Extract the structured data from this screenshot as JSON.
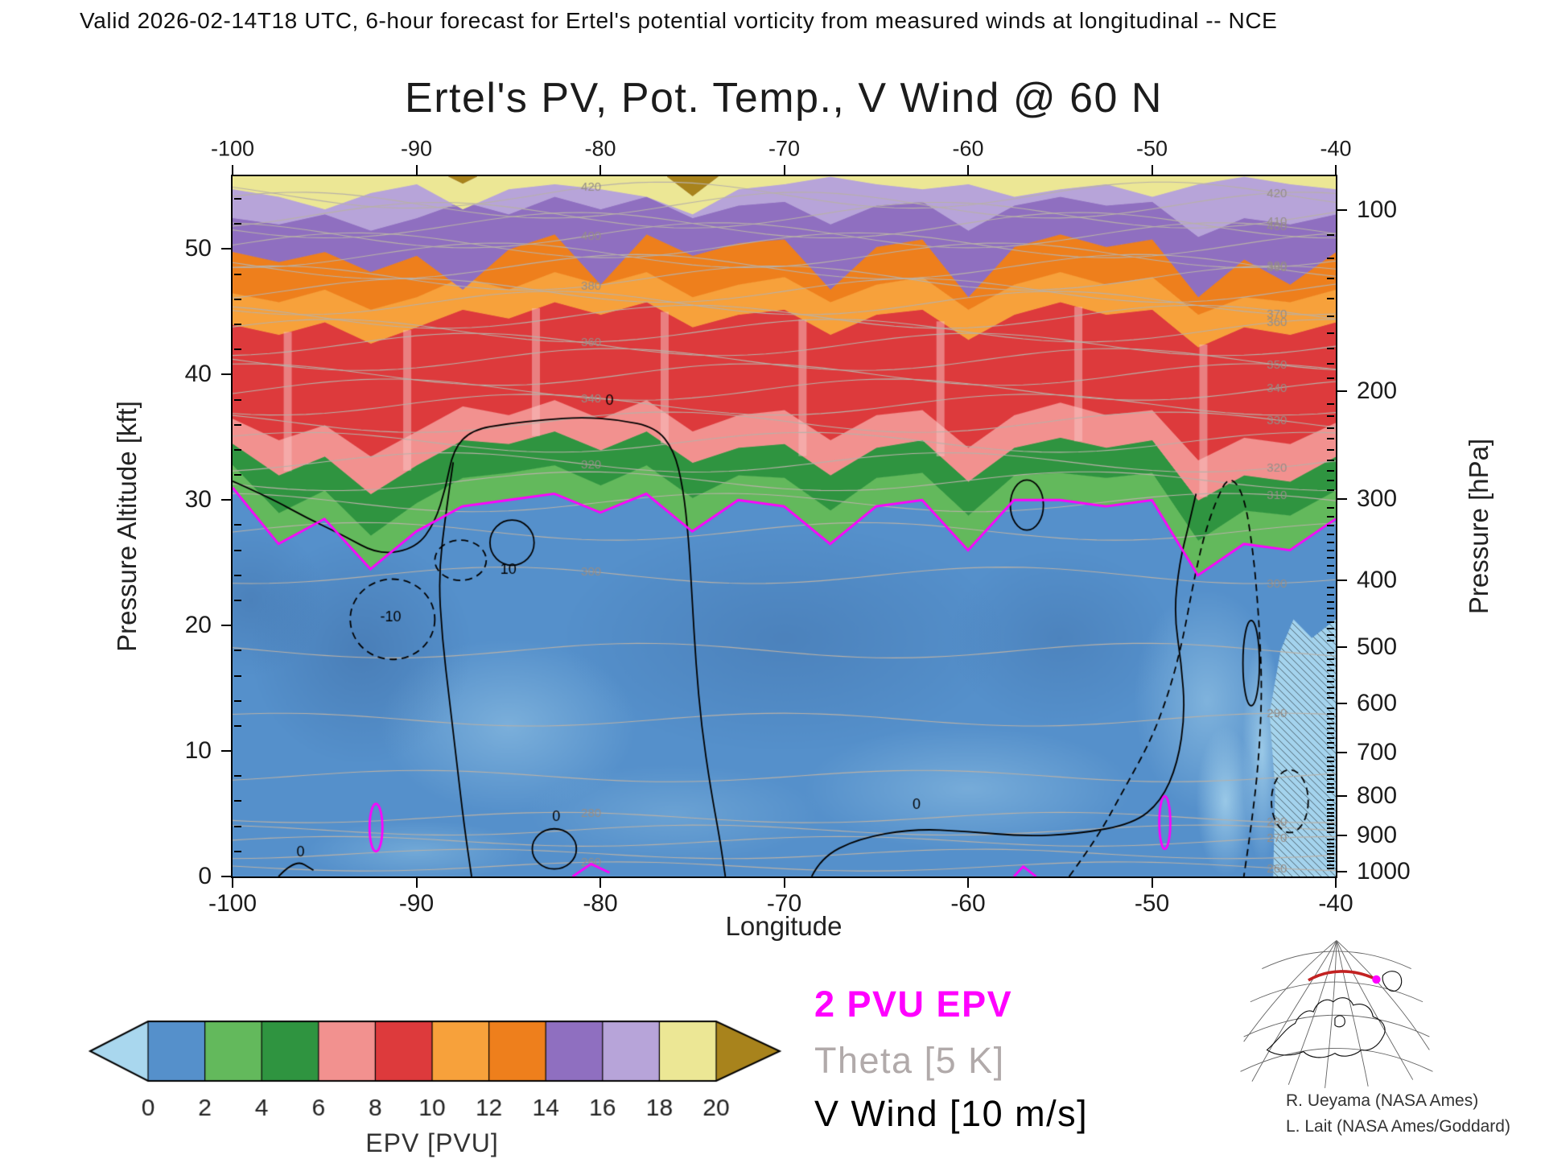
{
  "header": {
    "validity_line": "Valid 2026-02-14T18 UTC, 6-hour forecast for Ertel's potential vorticity from measured winds at longitudinal -- NCE"
  },
  "title": "Ertel's PV, Pot. Temp., V Wind @ 60 N",
  "axes": {
    "x": {
      "label": "Longitude",
      "ticks": [
        -100,
        -90,
        -80,
        -70,
        -60,
        -50,
        -40
      ]
    },
    "y_left": {
      "label": "Pressure Altitude [kft]",
      "ticks": [
        0,
        10,
        20,
        30,
        40,
        50
      ],
      "minor_step": 2
    },
    "y_right": {
      "label": "Pressure [hPa]",
      "ticks": [
        100,
        200,
        300,
        400,
        500,
        600,
        700,
        800,
        900,
        1000
      ]
    }
  },
  "colorbar": {
    "label": "EPV [PVU]",
    "ticks": [
      0,
      2,
      4,
      6,
      8,
      10,
      12,
      14,
      16,
      18,
      20
    ]
  },
  "legend": [
    {
      "text": "2 PVU EPV",
      "color": "#ff00ff"
    },
    {
      "text": "Theta [5 K]",
      "color": "#b1aaaa"
    },
    {
      "text": "V Wind [10 m/s]",
      "color": "#000000"
    }
  ],
  "credits": [
    "R. Ueyama (NASA Ames)",
    "L. Lait (NASA Ames/Goddard)"
  ],
  "chart_data": {
    "type": "heatmap",
    "title": "Ertel's PV, Pot. Temp., V Wind @ 60 N",
    "xlabel": "Longitude",
    "ylabel_left": "Pressure Altitude [kft]",
    "ylabel_right": "Pressure [hPa]",
    "x_range": [
      -100,
      -40
    ],
    "y_top_kft": 55.8,
    "lons": [
      -100,
      -97.5,
      -95,
      -92.5,
      -90,
      -87.5,
      -85,
      -82.5,
      -80,
      -77.5,
      -75,
      -72.5,
      -70,
      -67.5,
      -65,
      -62.5,
      -60,
      -57.5,
      -55,
      -52.5,
      -50,
      -47.5,
      -45,
      -42.5,
      -40
    ],
    "epv_levels": [
      0,
      2,
      4,
      6,
      8,
      10,
      12,
      14,
      16,
      18,
      20
    ],
    "epv_colors": [
      "#a9d7ee",
      "#5590cb",
      "#63b95c",
      "#2f9440",
      "#f2918f",
      "#dd3a3c",
      "#f7a13b",
      "#ee7f1c",
      "#8f6fc0",
      "#b7a4d9",
      "#ece795",
      "#a8831c"
    ],
    "boundaries": {
      "2": [
        31,
        26.5,
        28.5,
        24.5,
        27.5,
        29.5,
        30,
        30.5,
        29,
        30.5,
        27.5,
        30,
        29.5,
        26.5,
        29.5,
        30,
        26,
        30,
        30,
        29.5,
        30,
        24,
        26.5,
        26,
        28.5
      ],
      "4": [
        32.8,
        29,
        30.8,
        27.2,
        29.8,
        31.8,
        32.2,
        32.8,
        31.2,
        32.8,
        30.2,
        32,
        31.8,
        29.2,
        31.8,
        32.2,
        28.8,
        32,
        32.2,
        31.8,
        32.2,
        26.8,
        29.2,
        28.8,
        30.8
      ],
      "6": [
        34.5,
        32,
        33.5,
        30.5,
        32.8,
        34.8,
        34.5,
        35.5,
        34,
        35.5,
        33,
        34.2,
        34.5,
        32,
        34.2,
        34.8,
        31.5,
        34.2,
        35,
        34.2,
        34.8,
        30,
        32,
        31.5,
        33.5
      ],
      "8": [
        36.5,
        34.8,
        36,
        33.5,
        35.5,
        37.5,
        36.8,
        38,
        36.5,
        38,
        35.5,
        36.8,
        37.2,
        34.8,
        36.8,
        37.2,
        34.2,
        36.8,
        37.8,
        36.8,
        37.2,
        33.2,
        35,
        34.5,
        36.2
      ],
      "10": [
        44,
        43.2,
        44.2,
        42.5,
        43.8,
        45.2,
        44.5,
        45.8,
        44.8,
        45.8,
        43.8,
        44.8,
        45.2,
        43.2,
        44.8,
        45.2,
        42.8,
        44.8,
        45.8,
        44.8,
        45.2,
        42.2,
        43.8,
        43.2,
        44.2
      ],
      "12": [
        46.5,
        45.8,
        46.8,
        45.2,
        46.2,
        47.8,
        46.8,
        48.2,
        47.2,
        48.2,
        46.2,
        47.2,
        47.8,
        45.8,
        47.2,
        47.8,
        45.2,
        47.2,
        48.2,
        47.2,
        47.8,
        44.8,
        46.2,
        45.8,
        46.8
      ],
      "14": [
        49.8,
        49,
        49.8,
        48.2,
        49.5,
        46.8,
        50,
        51.2,
        47.2,
        51.2,
        49.5,
        50.5,
        50.8,
        46.8,
        50.2,
        50.8,
        46.2,
        50.2,
        51.2,
        50.2,
        50.8,
        46.2,
        49.2,
        47.2,
        49.8
      ],
      "16": [
        52.5,
        52,
        52.8,
        51.5,
        52.5,
        53.8,
        52.8,
        54.2,
        53.2,
        54.2,
        52.5,
        53.5,
        53.8,
        52,
        53.5,
        53.8,
        51.5,
        53.5,
        54.2,
        53.5,
        53.8,
        51,
        52.5,
        52,
        52.8
      ],
      "18": [
        54.8,
        54.2,
        53.2,
        54.5,
        55.2,
        53.2,
        54.8,
        55.2,
        54.8,
        54.2,
        52.8,
        54.8,
        55.2,
        55.8,
        55.2,
        54.8,
        55.2,
        54.2,
        54.8,
        55.2,
        54.2,
        55.2,
        55.8,
        55.2,
        54.8
      ],
      "20": [
        57,
        57,
        55.8,
        57,
        57,
        55.2,
        57,
        57,
        57,
        57,
        54.2,
        57,
        57,
        57,
        57,
        57,
        57,
        57,
        57,
        57,
        57,
        57,
        57,
        57,
        57
      ]
    },
    "tropopause_contour_pvu": 2,
    "theta_contours": [
      [
        260,
        0.8
      ],
      [
        265,
        1.8
      ],
      [
        270,
        2.8
      ],
      [
        275,
        3.7
      ],
      [
        280,
        4.7
      ],
      [
        285,
        8
      ],
      [
        290,
        12.5
      ],
      [
        295,
        18
      ],
      [
        300,
        24
      ],
      [
        305,
        27.5
      ],
      [
        310,
        29.8
      ],
      [
        315,
        31.5
      ],
      [
        320,
        33
      ],
      [
        325,
        34.6
      ],
      [
        330,
        36.2
      ],
      [
        335,
        37.6
      ],
      [
        340,
        38.8
      ],
      [
        345,
        40
      ],
      [
        350,
        41.2
      ],
      [
        355,
        42.4
      ],
      [
        360,
        43.5
      ],
      [
        365,
        44.6
      ],
      [
        370,
        45.7
      ],
      [
        375,
        46.7
      ],
      [
        380,
        47.7
      ],
      [
        385,
        48.6
      ],
      [
        390,
        49.5
      ],
      [
        395,
        50.3
      ],
      [
        400,
        51.1
      ],
      [
        405,
        51.9
      ],
      [
        410,
        52.7
      ],
      [
        415,
        53.5
      ],
      [
        420,
        54.3
      ]
    ],
    "theta_label_every": 10,
    "theta_label_lons": [
      -43.2,
      -80.5
    ],
    "wind_contours": [
      {
        "value": 0,
        "style": "solid",
        "label": "0",
        "label_at": [
          -79.5,
          37.6
        ],
        "points": [
          [
            -100,
            31.5
          ],
          [
            -98,
            30.2
          ],
          [
            -96,
            28.6
          ],
          [
            -94,
            27.2
          ],
          [
            -92,
            25.6
          ],
          [
            -90,
            26.2
          ],
          [
            -89,
            28.2
          ],
          [
            -88.4,
            31
          ],
          [
            -88,
            34
          ],
          [
            -87,
            35.6
          ],
          [
            -85,
            36.1
          ],
          [
            -83,
            36.4
          ],
          [
            -81,
            36.6
          ],
          [
            -79,
            36.4
          ],
          [
            -77,
            35.8
          ],
          [
            -76,
            34
          ],
          [
            -75.5,
            31
          ],
          [
            -75.2,
            27
          ],
          [
            -75,
            22
          ],
          [
            -74.8,
            17
          ],
          [
            -74.5,
            12
          ],
          [
            -74,
            7
          ],
          [
            -73.5,
            3
          ],
          [
            -73.2,
            0
          ]
        ]
      },
      {
        "value": 0,
        "style": "solid",
        "points": [
          [
            -88,
            33
          ],
          [
            -88.4,
            29
          ],
          [
            -88.8,
            24
          ],
          [
            -88.6,
            19
          ],
          [
            -88.2,
            14
          ],
          [
            -87.8,
            9
          ],
          [
            -87.4,
            4
          ],
          [
            -87,
            0
          ]
        ]
      },
      {
        "value": -10,
        "style": "dashed",
        "label": "-10",
        "label_at": [
          -91.4,
          20.3
        ],
        "ellipse": [
          -91.3,
          20.5,
          2.3,
          3.2
        ]
      },
      {
        "value": 10,
        "style": "solid",
        "label": "10",
        "label_at": [
          -85,
          24.1
        ],
        "ellipse": [
          -84.8,
          26.6,
          1.2,
          1.8
        ]
      },
      {
        "value": -10,
        "style": "dashed",
        "ellipse": [
          -87.6,
          25.2,
          1.4,
          1.6
        ]
      },
      {
        "value": 0,
        "style": "solid",
        "ellipse": [
          -56.8,
          29.6,
          0.9,
          2
        ]
      },
      {
        "value": 0,
        "style": "solid",
        "label": "0",
        "label_at": [
          -82.4,
          4.4
        ],
        "ellipse": [
          -82.5,
          2.2,
          1.2,
          1.6
        ]
      },
      {
        "value": 0,
        "style": "solid",
        "label": "0",
        "label_at": [
          -62.8,
          5.4
        ],
        "points": [
          [
            -68.5,
            0
          ],
          [
            -68,
            1.5
          ],
          [
            -66,
            3
          ],
          [
            -63,
            3.8
          ],
          [
            -60,
            3.6
          ],
          [
            -57,
            3.2
          ],
          [
            -54,
            3.4
          ],
          [
            -51,
            4.2
          ],
          [
            -49.5,
            6
          ],
          [
            -48.6,
            9
          ],
          [
            -48.2,
            13
          ],
          [
            -48.4,
            17
          ],
          [
            -48.8,
            21
          ],
          [
            -48.5,
            25
          ],
          [
            -48,
            28
          ],
          [
            -47.6,
            30.5
          ]
        ]
      },
      {
        "value": -10,
        "style": "dashed",
        "points": [
          [
            -54.5,
            0
          ],
          [
            -53,
            3
          ],
          [
            -51.5,
            7
          ],
          [
            -50,
            11
          ],
          [
            -49,
            15
          ],
          [
            -48.3,
            19
          ],
          [
            -47.8,
            23
          ],
          [
            -47.2,
            27
          ],
          [
            -46.5,
            30
          ],
          [
            -45.8,
            32
          ],
          [
            -45,
            30.5
          ],
          [
            -44.5,
            26
          ],
          [
            -44.2,
            21
          ],
          [
            -44,
            15
          ],
          [
            -44.2,
            9
          ],
          [
            -44.6,
            4
          ],
          [
            -45,
            0
          ]
        ]
      },
      {
        "value": 10,
        "style": "solid",
        "ellipse": [
          -44.6,
          17,
          0.45,
          3.4
        ]
      },
      {
        "value": -10,
        "style": "dashed",
        "ellipse": [
          -42.5,
          6,
          1,
          2.5
        ]
      },
      {
        "value": 0,
        "style": "solid",
        "label": "0",
        "label_at": [
          -96.3,
          1.6
        ],
        "points": [
          [
            -97.5,
            0
          ],
          [
            -96.6,
            1.4
          ],
          [
            -95.6,
            0.5
          ]
        ]
      }
    ],
    "magenta_features": [
      {
        "type": "ellipse",
        "e": [
          -92.2,
          3.9,
          0.35,
          1.9
        ]
      },
      {
        "type": "ellipse",
        "e": [
          -49.3,
          4.3,
          0.3,
          2.1
        ]
      },
      {
        "type": "poly",
        "points": [
          [
            -81.5,
            0
          ],
          [
            -80.5,
            1
          ],
          [
            -79.5,
            0.3
          ]
        ]
      },
      {
        "type": "poly",
        "points": [
          [
            -57.5,
            0
          ],
          [
            -57,
            0.8
          ],
          [
            -56.3,
            0
          ]
        ]
      }
    ],
    "fold_streak_lons": [
      -97,
      -90.5,
      -83.5,
      -76.5,
      -69,
      -61.5,
      -54,
      -47.2
    ],
    "texture_blobs": [
      {
        "lon": -85,
        "alt": 12,
        "rlon": 7,
        "ralt": 7,
        "rgb": "170,214,238",
        "a": 0.45
      },
      {
        "lon": -60,
        "alt": 7,
        "rlon": 9,
        "ralt": 5,
        "rgb": "170,214,238",
        "a": 0.4
      },
      {
        "lon": -47,
        "alt": 14,
        "rlon": 4,
        "ralt": 9,
        "rgb": "170,214,238",
        "a": 0.5
      },
      {
        "lon": -93,
        "alt": 18,
        "rlon": 6,
        "ralt": 9,
        "rgb": "47,86,140",
        "a": 0.3
      },
      {
        "lon": -70,
        "alt": 19,
        "rlon": 12,
        "ralt": 9,
        "rgb": "52,94,150",
        "a": 0.28
      },
      {
        "lon": -55,
        "alt": 19,
        "rlon": 6,
        "ralt": 7,
        "rgb": "52,94,150",
        "a": 0.25
      },
      {
        "lon": -76,
        "alt": 5,
        "rlon": 8,
        "ralt": 4,
        "rgb": "140,190,225",
        "a": 0.4
      },
      {
        "lon": -90,
        "alt": 2,
        "rlon": 6,
        "ralt": 2.5,
        "rgb": "150,200,230",
        "a": 0.45
      },
      {
        "lon": -46,
        "alt": 6,
        "rlon": 1.6,
        "ralt": 6,
        "rgb": "170,214,238",
        "a": 0.8
      },
      {
        "lon": -44,
        "alt": 10,
        "rlon": 1.1,
        "ralt": 9,
        "rgb": "170,214,238",
        "a": 0.8
      },
      {
        "lon": -99,
        "alt": 22,
        "rlon": 4,
        "ralt": 6,
        "rgb": "47,86,140",
        "a": 0.25
      }
    ],
    "hatch_region": {
      "top_points": [
        [
          -43.4,
          0
        ],
        [
          -43.3,
          7
        ],
        [
          -43.6,
          13
        ],
        [
          -43,
          18
        ],
        [
          -42.3,
          20.5
        ],
        [
          -41.3,
          19
        ],
        [
          -40,
          20.5
        ]
      ]
    }
  }
}
